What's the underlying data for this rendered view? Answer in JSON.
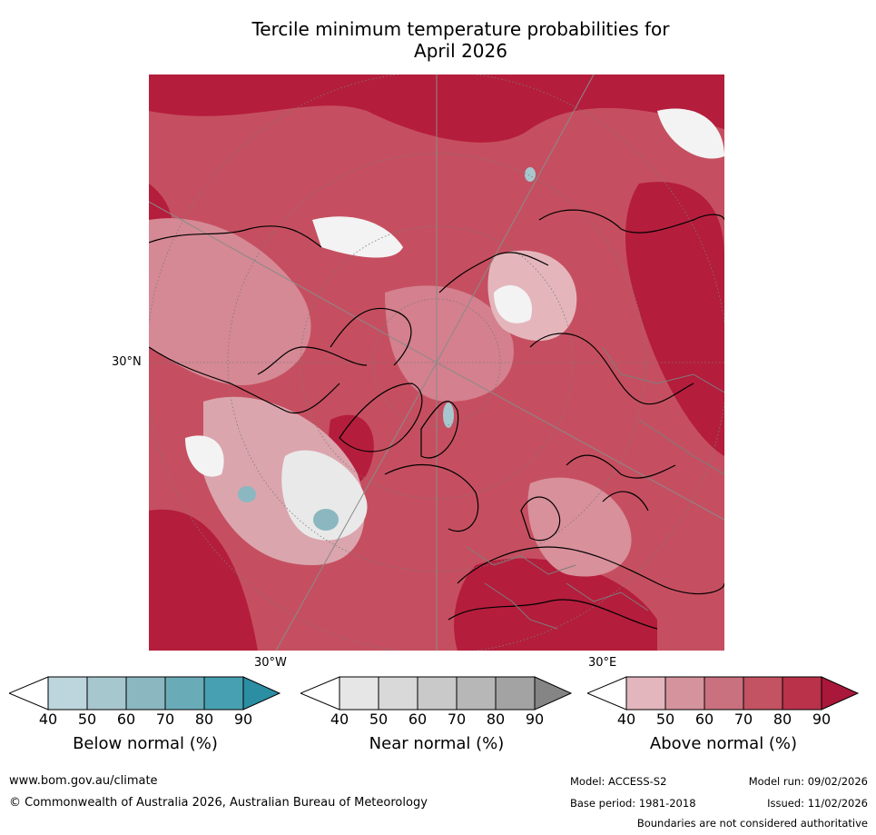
{
  "title_line1": "Tercile minimum temperature probabilities for",
  "title_line2": "April 2026",
  "map": {
    "lat_label": "30°N",
    "lon_labels": [
      "30°W",
      "30°E"
    ]
  },
  "colorbars": [
    {
      "label": "Below normal (%)",
      "ticks": [
        "40",
        "50",
        "60",
        "70",
        "80",
        "90"
      ],
      "colors": [
        "#ffffff",
        "#bdd5dc",
        "#a6c7ce",
        "#8bb7c0",
        "#6aabb8",
        "#47a0b1",
        "#2b8ea3"
      ]
    },
    {
      "label": "Near normal (%)",
      "ticks": [
        "40",
        "50",
        "60",
        "70",
        "80",
        "90"
      ],
      "colors": [
        "#ffffff",
        "#e6e6e6",
        "#d9d9d9",
        "#c9c9c9",
        "#b7b7b7",
        "#a3a3a3",
        "#858585"
      ]
    },
    {
      "label": "Above normal (%)",
      "ticks": [
        "40",
        "50",
        "60",
        "70",
        "80",
        "90"
      ],
      "colors": [
        "#ffffff",
        "#e3b5bc",
        "#d4939d",
        "#c9717e",
        "#c35262",
        "#b9324a",
        "#a9173a"
      ]
    }
  ],
  "footer": {
    "url": "www.bom.gov.au/climate",
    "copyright": "© Commonwealth of Australia 2026, Australian Bureau of Meteorology",
    "model": "Model: ACCESS-S2",
    "base_period": "Base period: 1981-2018",
    "model_run": "Model run: 09/02/2026",
    "issued": "Issued: 11/02/2026",
    "boundaries": "Boundaries are not considered authoritative"
  }
}
